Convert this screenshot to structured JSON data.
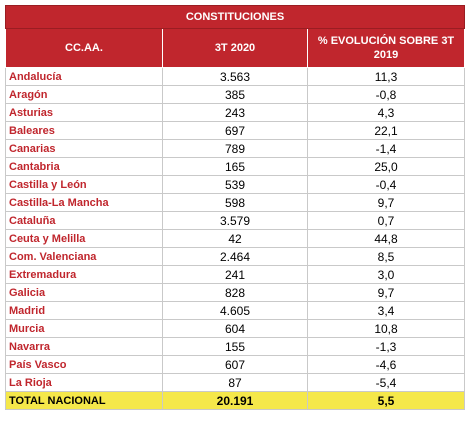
{
  "table": {
    "title": "CONSTITUCIONES",
    "headers": [
      "CC.AA.",
      "3T 2020",
      "% EVOLUCIÓN SOBRE 3T 2019"
    ],
    "rows": [
      {
        "region": "Andalucía",
        "value": "3.563",
        "change": "11,3"
      },
      {
        "region": "Aragón",
        "value": "385",
        "change": "-0,8"
      },
      {
        "region": "Asturias",
        "value": "243",
        "change": "4,3"
      },
      {
        "region": "Baleares",
        "value": "697",
        "change": "22,1"
      },
      {
        "region": "Canarias",
        "value": "789",
        "change": "-1,4"
      },
      {
        "region": "Cantabria",
        "value": "165",
        "change": "25,0"
      },
      {
        "region": "Castilla y León",
        "value": "539",
        "change": "-0,4"
      },
      {
        "region": "Castilla-La Mancha",
        "value": "598",
        "change": "9,7"
      },
      {
        "region": "Cataluña",
        "value": "3.579",
        "change": "0,7"
      },
      {
        "region": "Ceuta y Melilla",
        "value": "42",
        "change": "44,8"
      },
      {
        "region": "Com. Valenciana",
        "value": "2.464",
        "change": "8,5"
      },
      {
        "region": "Extremadura",
        "value": "241",
        "change": "3,0"
      },
      {
        "region": "Galicia",
        "value": "828",
        "change": "9,7"
      },
      {
        "region": "Madrid",
        "value": "4.605",
        "change": "3,4"
      },
      {
        "region": "Murcia",
        "value": "604",
        "change": "10,8"
      },
      {
        "region": "Navarra",
        "value": "155",
        "change": "-1,3"
      },
      {
        "region": "País Vasco",
        "value": "607",
        "change": "-4,6"
      },
      {
        "region": "La Rioja",
        "value": "87",
        "change": "-5,4"
      }
    ],
    "total": {
      "region": "TOTAL NACIONAL",
      "value": "20.191",
      "change": "5,5"
    }
  },
  "colors": {
    "header_bg": "#c0262d",
    "region_text": "#c0262d",
    "total_bg": "#f5e84a"
  }
}
